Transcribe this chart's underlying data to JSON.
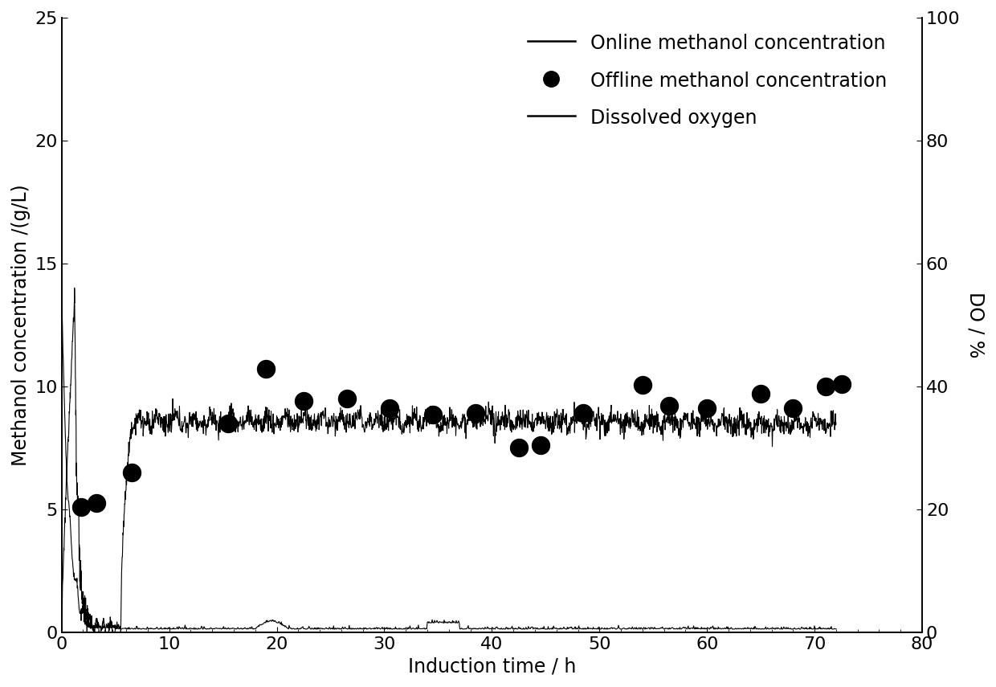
{
  "xlabel": "Induction time / h",
  "ylabel_left": "Methanol concentration /(g/L)",
  "ylabel_right": "DO / %",
  "xlim": [
    0,
    80
  ],
  "ylim_left": [
    0,
    25
  ],
  "ylim_right": [
    0,
    100
  ],
  "xticks": [
    0,
    10,
    20,
    30,
    40,
    50,
    60,
    70,
    80
  ],
  "yticks_left": [
    0,
    5,
    10,
    15,
    20,
    25
  ],
  "yticks_right": [
    0,
    20,
    40,
    60,
    80,
    100
  ],
  "legend_labels": [
    "Online methanol concentration",
    "Offline methanol concentration",
    "Dissolved oxygen"
  ],
  "offline_x": [
    1.8,
    3.2,
    6.5,
    15.5,
    19.0,
    22.5,
    26.5,
    30.5,
    34.5,
    38.5,
    42.5,
    44.5,
    48.5,
    54.0,
    56.5,
    60.0,
    65.0,
    68.0,
    71.0,
    72.5
  ],
  "offline_y": [
    5.1,
    5.25,
    6.5,
    8.5,
    10.7,
    9.4,
    9.5,
    9.1,
    8.85,
    8.9,
    7.5,
    7.6,
    8.9,
    10.05,
    9.2,
    9.1,
    9.7,
    9.1,
    10.0,
    10.1
  ],
  "background_color": "#ffffff",
  "line_color": "#000000",
  "dot_color": "#000000",
  "fontsize": 17,
  "tick_fontsize": 16,
  "label_fontsize": 17
}
